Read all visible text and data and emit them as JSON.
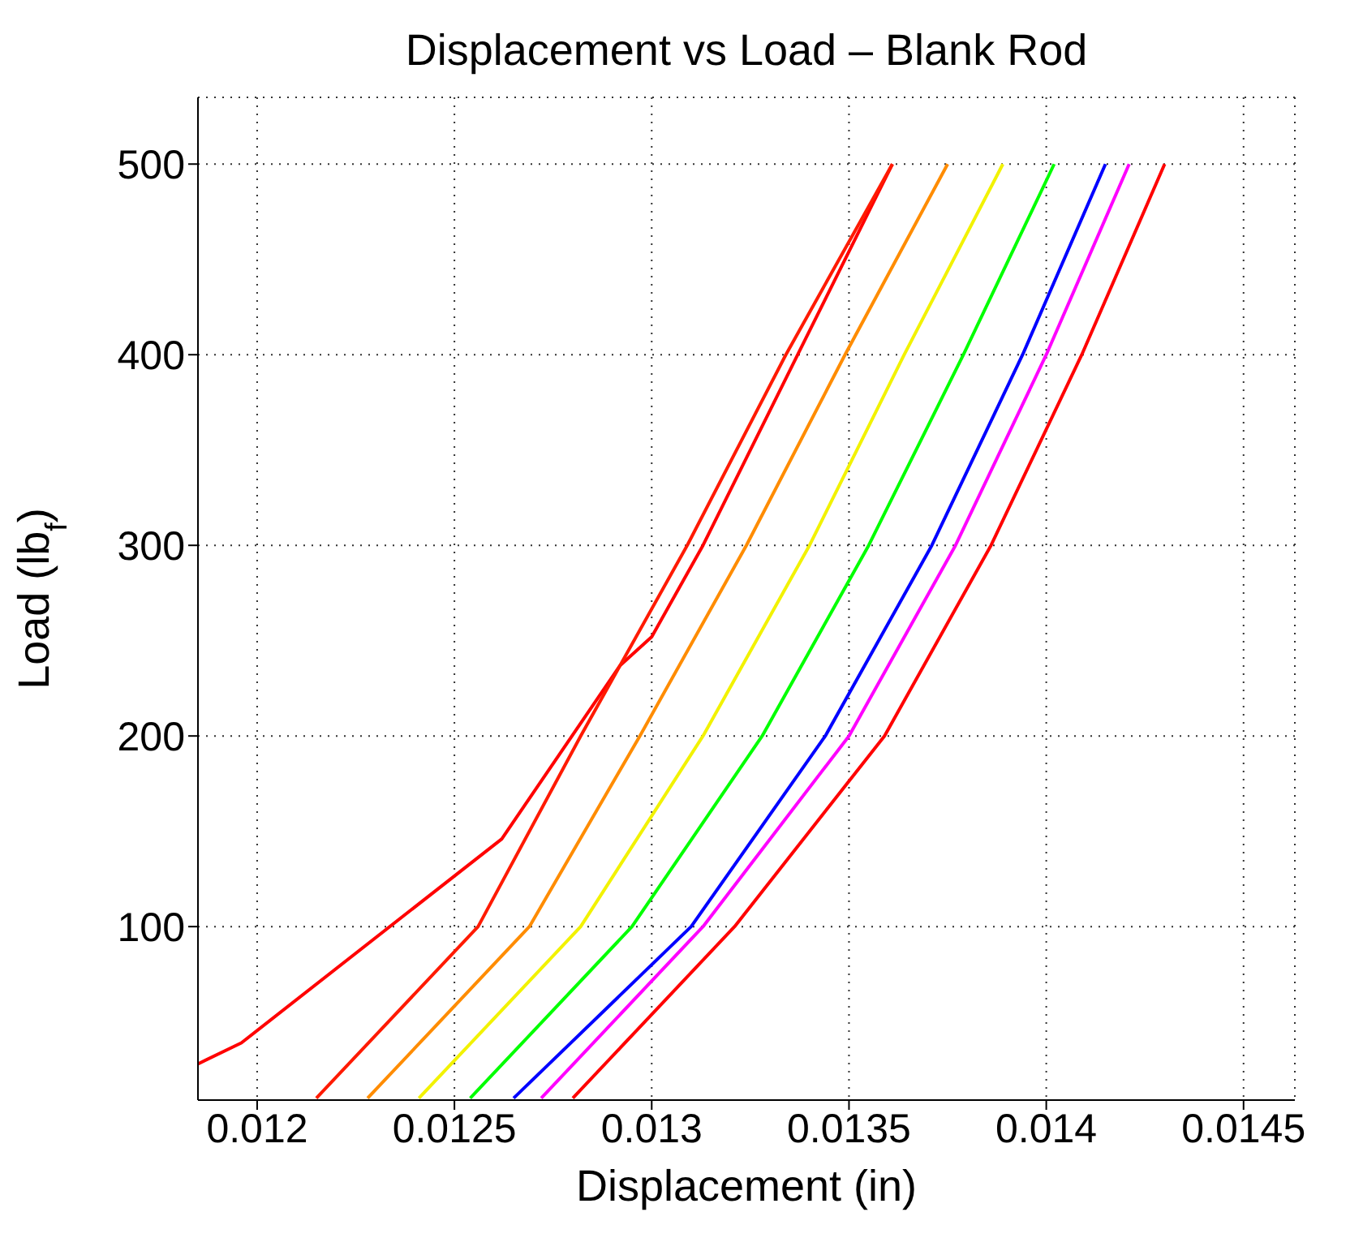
{
  "chart_data": {
    "type": "line",
    "title": "Displacement vs Load – Blank Rod",
    "xlabel": "Displacement (in)",
    "ylabel": "Load (lb$_{f}$)",
    "xlim": [
      0.01185,
      0.01463
    ],
    "xticks": [
      0.012,
      0.0125,
      0.013,
      0.0135,
      0.014,
      0.0145
    ],
    "ylim": [
      9,
      535
    ],
    "yticks": [
      100,
      200,
      300,
      400,
      500
    ],
    "grid": true,
    "legend": false,
    "marker": "none",
    "line_style": "solid",
    "series": [
      {
        "color": "#ff0000",
        "x": [
          0.01185,
          0.01196,
          0.01262,
          0.01292,
          0.013,
          0.01313,
          0.01337,
          0.01361
        ],
        "values": [
          28,
          39,
          146,
          237,
          252,
          300,
          400,
          500
        ]
      },
      {
        "color": "#ff1a00",
        "x": [
          0.01215,
          0.01256,
          0.01282,
          0.01309,
          0.01334,
          0.01361
        ],
        "values": [
          10,
          100,
          200,
          300,
          400,
          500
        ]
      },
      {
        "color": "#ff8c00",
        "x": [
          0.01228,
          0.01269,
          0.01297,
          0.01324,
          0.01349,
          0.01375
        ],
        "values": [
          10,
          100,
          200,
          300,
          400,
          500
        ]
      },
      {
        "color": "#f2f200",
        "x": [
          0.01241,
          0.01282,
          0.01313,
          0.0134,
          0.01364,
          0.01389
        ],
        "values": [
          10,
          100,
          200,
          300,
          400,
          500
        ]
      },
      {
        "color": "#00ff00",
        "x": [
          0.01254,
          0.01295,
          0.01328,
          0.01355,
          0.01379,
          0.01402
        ],
        "values": [
          10,
          100,
          200,
          300,
          400,
          500
        ]
      },
      {
        "color": "#0000ff",
        "x": [
          0.01265,
          0.0131,
          0.01344,
          0.01371,
          0.01394,
          0.01415
        ],
        "values": [
          10,
          100,
          200,
          300,
          400,
          500
        ]
      },
      {
        "color": "#ff00ff",
        "x": [
          0.01272,
          0.01313,
          0.0135,
          0.01377,
          0.014,
          0.01421
        ],
        "values": [
          10,
          100,
          200,
          300,
          400,
          500
        ]
      },
      {
        "color": "#ff0000",
        "x": [
          0.0128,
          0.01321,
          0.01359,
          0.01386,
          0.01409,
          0.0143
        ],
        "values": [
          10,
          100,
          200,
          300,
          400,
          500
        ]
      }
    ]
  }
}
